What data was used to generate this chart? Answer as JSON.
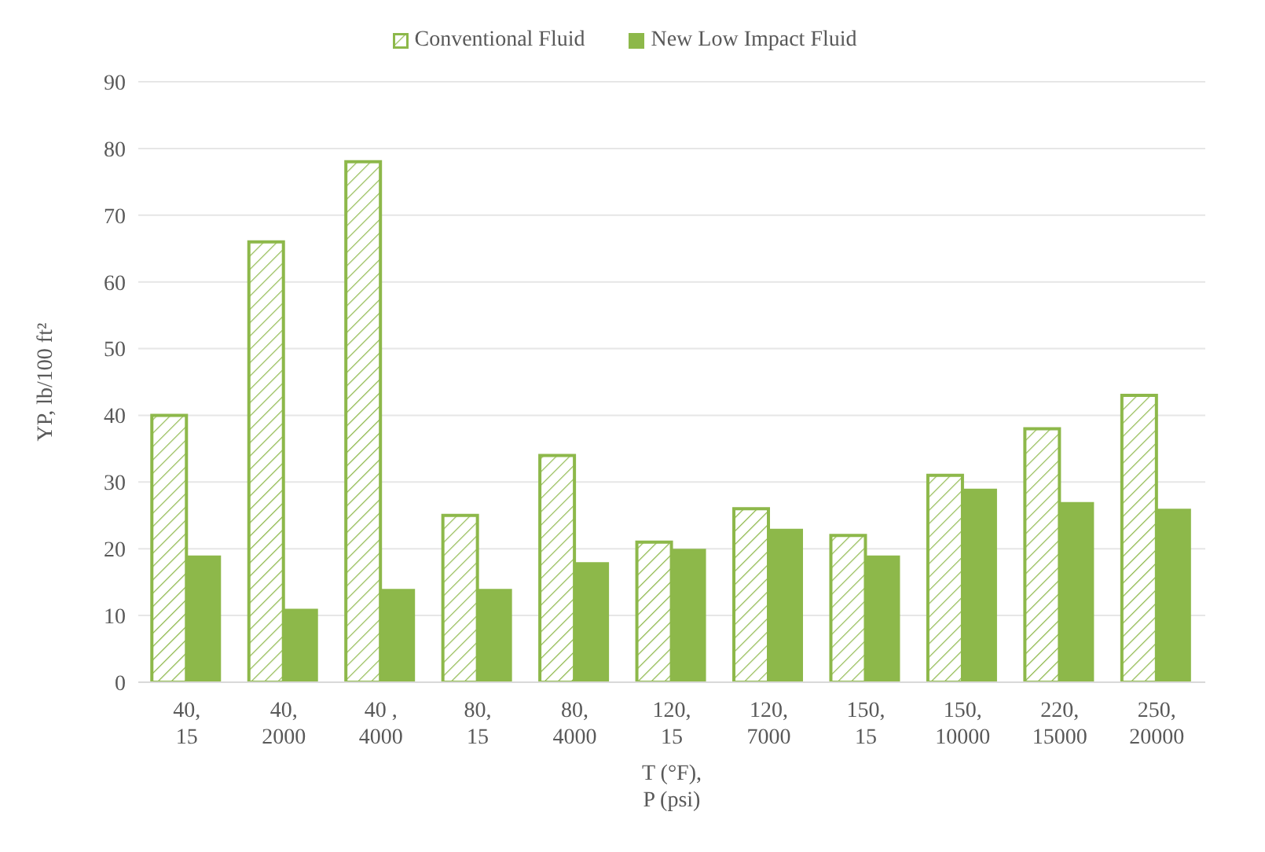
{
  "chart_data": {
    "type": "bar",
    "xlabel": "T (°F),\nP (psi)",
    "ylabel": "YP, lb/100 ft²",
    "categories": [
      "40,\n15",
      "40,\n2000",
      "40 ,\n4000",
      "80,\n15",
      "80,\n4000",
      "120,\n15",
      "120,\n7000",
      "150,\n15",
      "150,\n10000",
      "220,\n15000",
      "250,\n20000"
    ],
    "series": [
      {
        "name": "Conventional Fluid",
        "color": "#8db84a",
        "values": [
          40,
          66,
          78,
          25,
          34,
          21,
          26,
          22,
          31,
          38,
          43
        ]
      },
      {
        "name": "New Low Impact Fluid",
        "color": "#8db84a",
        "values": [
          19,
          11,
          14,
          14,
          18,
          20,
          23,
          19,
          29,
          27,
          26
        ]
      }
    ],
    "ylim": [
      0,
      90
    ],
    "yticks": [
      0,
      10,
      20,
      30,
      40,
      50,
      60,
      70,
      80,
      90
    ],
    "grid": "y",
    "legend": "top"
  }
}
